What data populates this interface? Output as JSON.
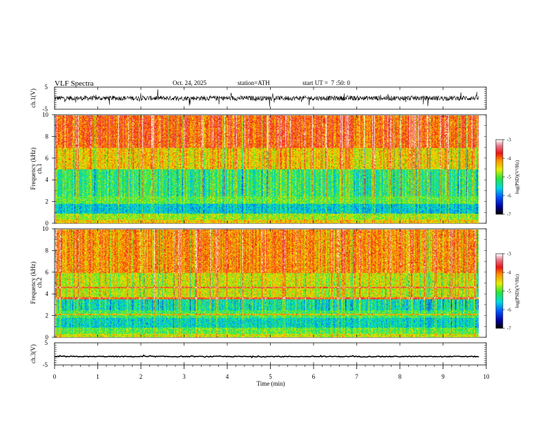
{
  "header": {
    "title": "VLF Spectra",
    "date": "Oct. 24, 2025",
    "station": "station=ATH",
    "start": "start UT =  7 :50: 0"
  },
  "chart_data": [
    {
      "type": "line",
      "name": "ch1-waveform",
      "ylabel": "ch.1(V)",
      "ylim": [
        -5,
        5
      ],
      "yticks": [
        "5",
        "-5"
      ],
      "xlim": [
        0,
        10
      ],
      "noise_amplitude_v": 1.1,
      "trace_color": "#000000"
    },
    {
      "type": "heatmap",
      "name": "ch1-spectrogram",
      "ylabel_channel": "ch.1",
      "ylabel": "Frequency (kHz)",
      "ylim": [
        0,
        10
      ],
      "yticks": [
        "0",
        "2",
        "4",
        "6",
        "8",
        "10"
      ],
      "xlim": [
        0,
        9.83
      ],
      "colorbar": {
        "label": "log(PSD)(V²/Hz)",
        "range": [
          -7,
          -3
        ],
        "ticks": [
          "-3",
          "-4",
          "-5",
          "-6",
          "-7"
        ]
      },
      "band_level_log_psd": [
        {
          "f_khz": [
            0,
            0.3
          ],
          "level": -4.4
        },
        {
          "f_khz": [
            0.3,
            0.9
          ],
          "level": -4.8
        },
        {
          "f_khz": [
            0.9,
            1.8
          ],
          "level": -5.6
        },
        {
          "f_khz": [
            1.8,
            2.5
          ],
          "level": -5.0
        },
        {
          "f_khz": [
            2.5,
            5.0
          ],
          "level": -5.2
        },
        {
          "f_khz": [
            5.0,
            7.0
          ],
          "level": -4.4
        },
        {
          "f_khz": [
            7.0,
            10.0
          ],
          "level": -3.9
        }
      ]
    },
    {
      "type": "heatmap",
      "name": "ch2-spectrogram",
      "ylabel_channel": "ch.2",
      "ylabel": "Frequency (kHz)",
      "ylim": [
        0,
        10
      ],
      "yticks": [
        "0",
        "2",
        "4",
        "6",
        "8",
        "10"
      ],
      "xlim": [
        0,
        9.83
      ],
      "colorbar": {
        "label": "log(PSD)(V²/Hz)",
        "range": [
          -7,
          -3
        ],
        "ticks": [
          "-3",
          "-4",
          "-5",
          "-6",
          "-7"
        ]
      },
      "band_level_log_psd": [
        {
          "f_khz": [
            0,
            0.3
          ],
          "level": -4.6
        },
        {
          "f_khz": [
            0.3,
            0.9
          ],
          "level": -5.0
        },
        {
          "f_khz": [
            0.9,
            1.8
          ],
          "level": -5.5
        },
        {
          "f_khz": [
            1.8,
            2.5
          ],
          "level": -5.1
        },
        {
          "f_khz": [
            2.5,
            3.5
          ],
          "level": -5.4
        },
        {
          "f_khz": [
            3.5,
            6.0
          ],
          "level": -4.6
        },
        {
          "f_khz": [
            6.0,
            10.0
          ],
          "level": -4.1
        }
      ],
      "tone_lines_khz": [
        2.1,
        3.6,
        4.6
      ]
    },
    {
      "type": "line",
      "name": "ch3-waveform",
      "ylabel": "ch.3(V)",
      "ylim": [
        -5,
        5
      ],
      "yticks": [
        "5",
        "-5"
      ],
      "xlim": [
        0,
        10
      ],
      "level_v": -1.2,
      "noise_amplitude_v": 0.2,
      "trace_color": "#000000"
    }
  ],
  "time_axis": {
    "label": "Time (min)",
    "ticks": [
      "0",
      "1",
      "2",
      "3",
      "4",
      "5",
      "6",
      "7",
      "8",
      "9",
      "10"
    ],
    "range": [
      0,
      10
    ]
  }
}
